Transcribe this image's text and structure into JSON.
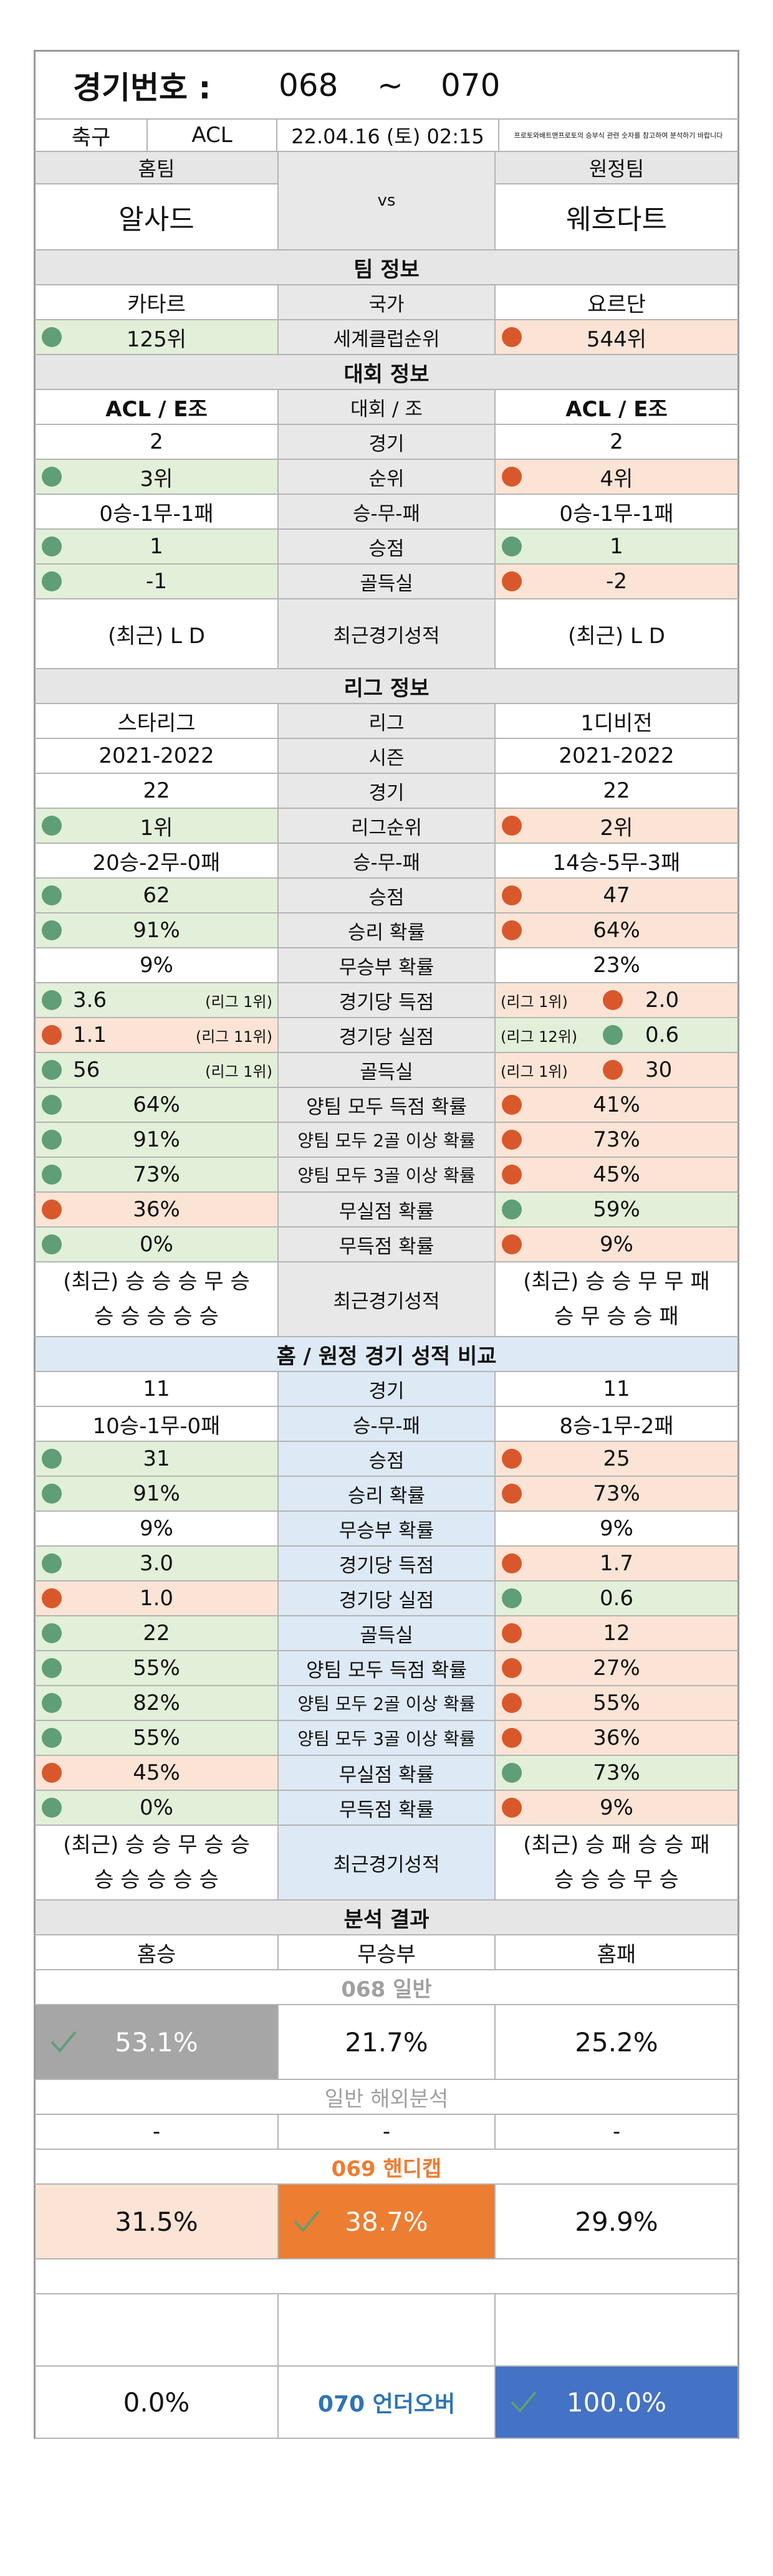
{
  "match": {
    "label": "경기번호 :",
    "from": "068",
    "tilde": "~",
    "to": "070",
    "sport": "축구",
    "league": "ACL",
    "datetime": "22.04.16 (토) 02:15",
    "notice": "프로토와배트맨프로토의 승부식 관련 숫자를 참고하여 분석하기 바랍니다"
  },
  "teams": {
    "home_label": "홈팀",
    "away_label": "원정팀",
    "home": "알사드",
    "vs": "vs",
    "away": "웨흐다트"
  },
  "team_info": {
    "header": "팀 정보",
    "rows": [
      {
        "label": "국가",
        "home": "카타르",
        "away": "요르단"
      },
      {
        "label": "세계클럽순위",
        "home": "125위",
        "away": "544위"
      }
    ]
  },
  "tourn_info": {
    "header": "대회 정보",
    "rows": [
      {
        "label": "대회 / 조",
        "home": "ACL / E조",
        "away": "ACL / E조"
      },
      {
        "label": "경기",
        "home": "2",
        "away": "2"
      },
      {
        "label": "순위",
        "home": "3위",
        "away": "4위"
      },
      {
        "label": "승-무-패",
        "home": "0승-1무-1패",
        "away": "0승-1무-1패"
      },
      {
        "label": "승점",
        "home": "1",
        "away": "1"
      },
      {
        "label": "골득실",
        "home": "-1",
        "away": "-2"
      },
      {
        "label": "최근경기성적",
        "home": "(최근) L D",
        "away": "(최근) L D"
      }
    ]
  },
  "league_info": {
    "header": "리그 정보",
    "rows": [
      {
        "label": "리그",
        "home": "스타리그",
        "away": "1디비전"
      },
      {
        "label": "시즌",
        "home": "2021-2022",
        "away": "2021-2022"
      },
      {
        "label": "경기",
        "home": "22",
        "away": "22"
      },
      {
        "label": "리그순위",
        "home": "1위",
        "away": "2위"
      },
      {
        "label": "승-무-패",
        "home": "20승-2무-0패",
        "away": "14승-5무-3패"
      },
      {
        "label": "승점",
        "home": "62",
        "away": "47"
      },
      {
        "label": "승리 확률",
        "home": "91%",
        "away": "64%"
      },
      {
        "label": "무승부 확률",
        "home": "9%",
        "away": "23%"
      },
      {
        "label": "경기당 득점",
        "home": "3.6",
        "home_rank": "(리그 1위)",
        "away": "2.0",
        "away_rank": "(리그 1위)"
      },
      {
        "label": "경기당 실점",
        "home": "1.1",
        "home_rank": "(리그 11위)",
        "away": "0.6",
        "away_rank": "(리그 12위)"
      },
      {
        "label": "골득실",
        "home": "56",
        "home_rank": "(리그 1위)",
        "away": "30",
        "away_rank": "(리그 1위)"
      },
      {
        "label": "양팀 모두 득점 확률",
        "home": "64%",
        "away": "41%"
      },
      {
        "label": "양팀 모두 2골 이상 확률",
        "home": "91%",
        "away": "73%"
      },
      {
        "label": "양팀 모두 3골 이상 확률",
        "home": "73%",
        "away": "45%"
      },
      {
        "label": "무실점 확률",
        "home": "36%",
        "away": "59%"
      },
      {
        "label": "무득점 확률",
        "home": "0%",
        "away": "9%"
      },
      {
        "label": "최근경기성적",
        "home1": "(최근) 승 승 승 무 승",
        "home2": "승 승 승 승 승",
        "away1": "(최근) 승 승 무 무 패",
        "away2": "승 무 승 승 패"
      }
    ]
  },
  "ha_info": {
    "header": "홈 / 원정 경기 성적 비교",
    "rows": [
      {
        "label": "경기",
        "home": "11",
        "away": "11"
      },
      {
        "label": "승-무-패",
        "home": "10승-1무-0패",
        "away": "8승-1무-2패"
      },
      {
        "label": "승점",
        "home": "31",
        "away": "25"
      },
      {
        "label": "승리 확률",
        "home": "91%",
        "away": "73%"
      },
      {
        "label": "무승부 확률",
        "home": "9%",
        "away": "9%"
      },
      {
        "label": "경기당 득점",
        "home": "3.0",
        "away": "1.7"
      },
      {
        "label": "경기당 실점",
        "home": "1.0",
        "away": "0.6"
      },
      {
        "label": "골득실",
        "home": "22",
        "away": "12"
      },
      {
        "label": "양팀 모두 득점 확률",
        "home": "55%",
        "away": "27%"
      },
      {
        "label": "양팀 모두 2골 이상 확률",
        "home": "82%",
        "away": "55%"
      },
      {
        "label": "양팀 모두 3골 이상 확률",
        "home": "55%",
        "away": "36%"
      },
      {
        "label": "무실점 확률",
        "home": "45%",
        "away": "73%"
      },
      {
        "label": "무득점 확률",
        "home": "0%",
        "away": "9%"
      },
      {
        "label": "최근경기성적",
        "home1": "(최근) 승 승 무 승 승",
        "home2": "승 승 승 승 승",
        "away1": "(최근) 승 패 승 승 패",
        "away2": "승 승 승 무 승"
      }
    ]
  },
  "analysis": {
    "header": "분석 결과",
    "cols": [
      "홈승",
      "무승부",
      "홈패"
    ],
    "sec1_title": "068 일반",
    "sec1": [
      "53.1%",
      "21.7%",
      "25.2%"
    ],
    "sec2_title": "일반 해외분석",
    "sec2": [
      "-",
      "-",
      "-"
    ],
    "sec3_title": "069 핸디캡",
    "sec3": [
      "31.5%",
      "38.7%",
      "29.9%"
    ],
    "sec4_left": "0.0%",
    "sec4_mid": "070 언더오버",
    "sec4_right": "100.0%"
  },
  "colors": {
    "green_dot": "#5f9e77",
    "orange_dot": "#d9582b",
    "handicap_orange": "#ed7d31",
    "underover_blue": "#4472c4",
    "general_gray": "#a6a6a6"
  }
}
